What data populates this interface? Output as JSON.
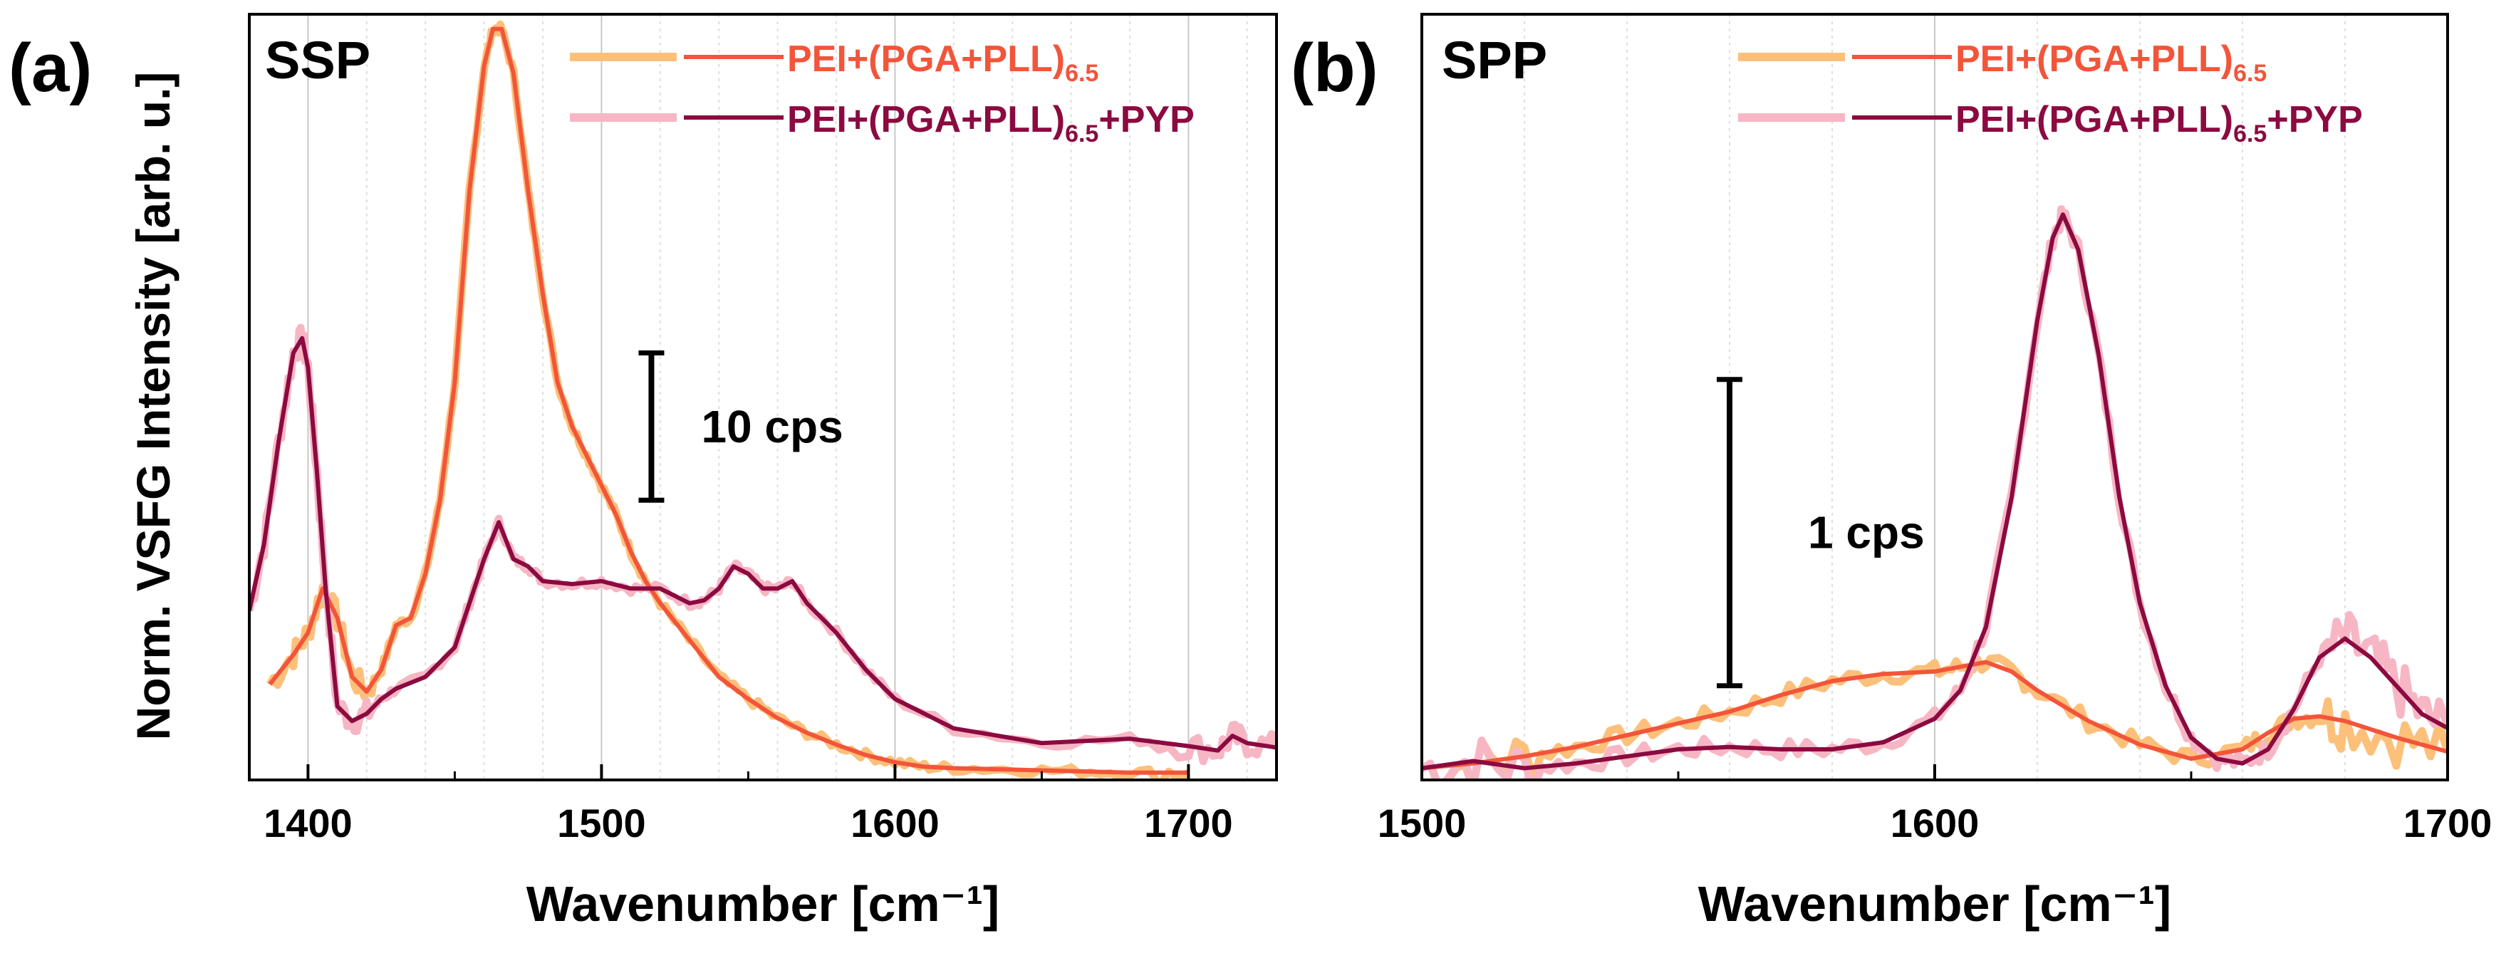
{
  "chart_data": [
    {
      "panel_label": "(a)",
      "polarization": "SSP",
      "type": "line",
      "xlabel": "Wavenumber [cm⁻¹]",
      "ylabel": "Norm. VSFG Intensity [arb. u.]",
      "xlim": [
        1380,
        1730
      ],
      "ylim": [
        0,
        52
      ],
      "xticks": [
        1400,
        1500,
        1600,
        1700
      ],
      "scalebar": {
        "label": "10 cps",
        "from": 19,
        "to": 29,
        "x": 1517
      },
      "series": [
        {
          "name": "PEI+(PGA+PLL)",
          "subscript": "6.5",
          "role": "fit",
          "color": "#f2553a",
          "raw_color": "#fcc07a",
          "x": [
            1387,
            1395,
            1400,
            1405,
            1410,
            1415,
            1420,
            1425,
            1430,
            1435,
            1440,
            1445,
            1450,
            1455,
            1460,
            1463,
            1466,
            1470,
            1475,
            1480,
            1485,
            1490,
            1495,
            1500,
            1505,
            1510,
            1515,
            1520,
            1530,
            1540,
            1550,
            1560,
            1570,
            1580,
            1590,
            1600,
            1610,
            1620,
            1640,
            1660,
            1680,
            1700
          ],
          "y": [
            6.5,
            8.5,
            10,
            13,
            11,
            7,
            6,
            7.5,
            10.5,
            11,
            14,
            19,
            27,
            40,
            48.5,
            51,
            51,
            48,
            40,
            33,
            27,
            24,
            22,
            20,
            18,
            15.5,
            13.5,
            12,
            9.5,
            7,
            5.5,
            4.2,
            3.2,
            2.4,
            1.7,
            1.2,
            0.9,
            0.8,
            0.7,
            0.6,
            0.5,
            0.5
          ]
        },
        {
          "name": "PEI+(PGA+PLL)",
          "subscript": "6.5",
          "suffix": "+PYP",
          "role": "fit",
          "color": "#8b0a40",
          "raw_color": "#f7b6c4",
          "x": [
            1380,
            1385,
            1390,
            1395,
            1398,
            1400,
            1403,
            1406,
            1410,
            1415,
            1420,
            1425,
            1430,
            1440,
            1450,
            1455,
            1460,
            1465,
            1470,
            1475,
            1480,
            1490,
            1500,
            1510,
            1520,
            1530,
            1535,
            1540,
            1545,
            1550,
            1555,
            1560,
            1565,
            1570,
            1580,
            1590,
            1600,
            1620,
            1650,
            1680,
            1700,
            1710,
            1715,
            1720,
            1730
          ],
          "y": [
            11.5,
            16,
            23,
            29,
            30,
            28,
            21,
            13,
            5,
            4,
            4.5,
            5.5,
            6.2,
            7,
            9,
            12,
            15,
            17.5,
            15,
            14.5,
            13.5,
            13.3,
            13.5,
            13,
            13,
            12,
            12.2,
            13,
            14.5,
            14,
            13,
            13,
            13.5,
            12,
            10,
            7.5,
            5.5,
            3.5,
            2.5,
            2.8,
            2.3,
            2,
            3,
            2.5,
            2.2
          ]
        }
      ]
    },
    {
      "panel_label": "(b)",
      "polarization": "SPP",
      "type": "line",
      "xlabel": "Wavenumber [cm⁻¹]",
      "xlim": [
        1500,
        1700
      ],
      "ylim": [
        0,
        3.25
      ],
      "xticks": [
        1500,
        1600,
        1700
      ],
      "scalebar": {
        "label": "1 cps",
        "from": 0.4,
        "to": 1.7,
        "x": 1560
      },
      "series": [
        {
          "name": "PEI+(PGA+PLL)",
          "subscript": "6.5",
          "role": "fit",
          "color": "#f2553a",
          "raw_color": "#fcc07a",
          "x": [
            1500,
            1510,
            1520,
            1530,
            1540,
            1550,
            1560,
            1570,
            1580,
            1590,
            1600,
            1605,
            1610,
            1615,
            1620,
            1630,
            1640,
            1650,
            1660,
            1665,
            1670,
            1675,
            1680,
            1690,
            1700
          ],
          "y": [
            0.05,
            0.07,
            0.1,
            0.14,
            0.19,
            0.24,
            0.29,
            0.36,
            0.42,
            0.45,
            0.46,
            0.48,
            0.5,
            0.46,
            0.38,
            0.25,
            0.15,
            0.09,
            0.13,
            0.2,
            0.26,
            0.27,
            0.25,
            0.18,
            0.12
          ]
        },
        {
          "name": "PEI+(PGA+PLL)",
          "subscript": "6.5",
          "suffix": "+PYP",
          "role": "fit",
          "color": "#8b0a40",
          "raw_color": "#f7b6c4",
          "x": [
            1500,
            1510,
            1520,
            1530,
            1540,
            1550,
            1560,
            1570,
            1580,
            1590,
            1600,
            1605,
            1610,
            1615,
            1620,
            1623,
            1625,
            1628,
            1632,
            1636,
            1640,
            1645,
            1650,
            1655,
            1660,
            1665,
            1670,
            1675,
            1680,
            1685,
            1690,
            1695,
            1700
          ],
          "y": [
            0.05,
            0.08,
            0.05,
            0.07,
            0.1,
            0.13,
            0.14,
            0.13,
            0.13,
            0.16,
            0.26,
            0.38,
            0.65,
            1.2,
            1.95,
            2.3,
            2.4,
            2.25,
            1.8,
            1.2,
            0.75,
            0.4,
            0.18,
            0.09,
            0.07,
            0.13,
            0.3,
            0.52,
            0.6,
            0.52,
            0.4,
            0.28,
            0.22
          ]
        }
      ]
    }
  ]
}
